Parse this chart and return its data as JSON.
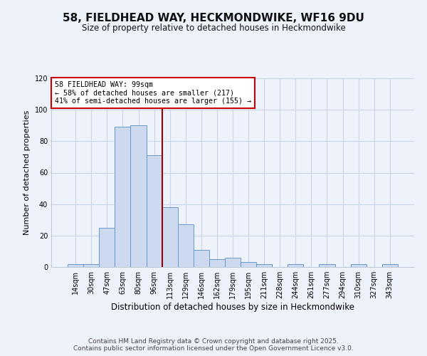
{
  "title": "58, FIELDHEAD WAY, HECKMONDWIKE, WF16 9DU",
  "subtitle": "Size of property relative to detached houses in Heckmondwike",
  "xlabel": "Distribution of detached houses by size in Heckmondwike",
  "ylabel": "Number of detached properties",
  "bar_color": "#ccd9ee",
  "bar_edge_color": "#6699cc",
  "categories": [
    "14sqm",
    "30sqm",
    "47sqm",
    "63sqm",
    "80sqm",
    "96sqm",
    "113sqm",
    "129sqm",
    "146sqm",
    "162sqm",
    "179sqm",
    "195sqm",
    "211sqm",
    "228sqm",
    "244sqm",
    "261sqm",
    "277sqm",
    "294sqm",
    "310sqm",
    "327sqm",
    "343sqm"
  ],
  "values": [
    2,
    2,
    25,
    89,
    90,
    71,
    38,
    27,
    11,
    5,
    6,
    3,
    2,
    0,
    2,
    0,
    2,
    0,
    2,
    0,
    2
  ],
  "ylim": [
    0,
    120
  ],
  "yticks": [
    0,
    20,
    40,
    60,
    80,
    100,
    120
  ],
  "vline_index": 5.5,
  "vline_color": "#990000",
  "annotation_title": "58 FIELDHEAD WAY: 99sqm",
  "annotation_line1": "← 58% of detached houses are smaller (217)",
  "annotation_line2": "41% of semi-detached houses are larger (155) →",
  "annotation_box_color": "#ffffff",
  "annotation_box_edge": "#cc0000",
  "footer1": "Contains HM Land Registry data © Crown copyright and database right 2025.",
  "footer2": "Contains public sector information licensed under the Open Government Licence v3.0.",
  "bg_color": "#eef2fa",
  "grid_color": "#d8e0f0"
}
